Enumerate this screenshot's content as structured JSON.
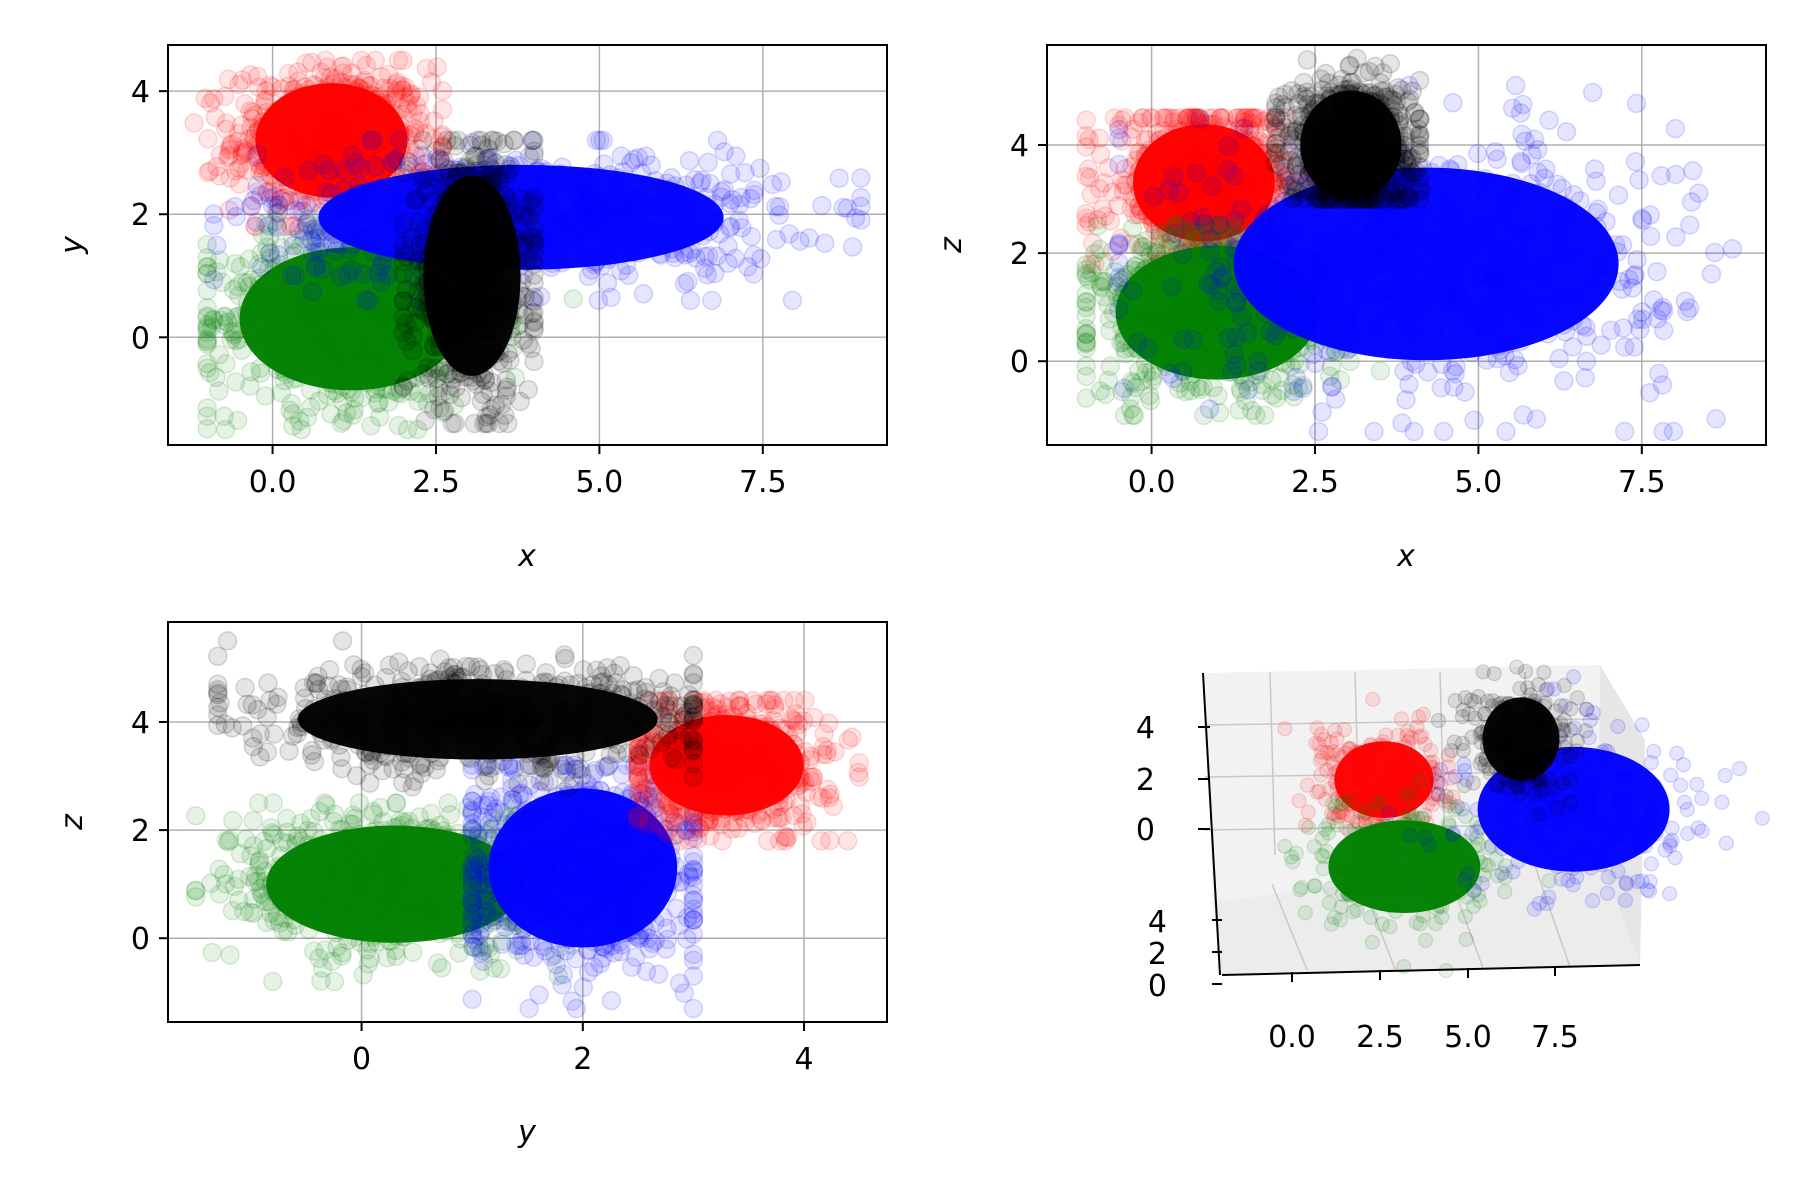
{
  "colors": {
    "red": "#ff0000",
    "green": "#008000",
    "blue": "#0000ff",
    "black": "#000000",
    "grid": "#b0b0b0"
  },
  "chart_data": [
    {
      "type": "scatter",
      "xlabel": "x",
      "ylabel": "y",
      "xlim": [
        -1.6,
        9.4
      ],
      "ylim": [
        -1.75,
        4.75
      ],
      "xticks": [
        "0.0",
        "2.5",
        "5.0",
        "7.5"
      ],
      "xtick_values": [
        0,
        2.5,
        5,
        7.5
      ],
      "yticks": [
        "0",
        "2",
        "4"
      ],
      "ytick_values": [
        0,
        2,
        4
      ],
      "grid": true,
      "clusters": [
        {
          "color": "red",
          "center": [
            0.9,
            3.2
          ],
          "spread": [
            0.75,
            0.6
          ],
          "extent": [
            [
              -1.2,
              2.6
            ],
            [
              1.8,
              4.5
            ]
          ]
        },
        {
          "color": "green",
          "center": [
            1.2,
            0.3
          ],
          "spread": [
            1.1,
            0.75
          ],
          "extent": [
            [
              -1.0,
              4.6
            ],
            [
              -1.5,
              3.4
            ]
          ]
        },
        {
          "color": "blue",
          "center": [
            3.8,
            1.95
          ],
          "spread": [
            2.0,
            0.55
          ],
          "extent": [
            [
              -0.9,
              9.0
            ],
            [
              0.6,
              3.2
            ]
          ]
        },
        {
          "color": "black",
          "center": [
            3.05,
            1.0
          ],
          "spread": [
            0.48,
            1.05
          ],
          "extent": [
            [
              2.0,
              4.0
            ],
            [
              -1.4,
              3.2
            ]
          ]
        }
      ]
    },
    {
      "type": "scatter",
      "xlabel": "x",
      "ylabel": "z",
      "xlim": [
        -1.6,
        9.4
      ],
      "ylim": [
        -1.55,
        5.85
      ],
      "xticks": [
        "0.0",
        "2.5",
        "5.0",
        "7.5"
      ],
      "xtick_values": [
        0,
        2.5,
        5,
        7.5
      ],
      "yticks": [
        "0",
        "2",
        "4"
      ],
      "ytick_values": [
        0,
        2,
        4
      ],
      "grid": true,
      "clusters": [
        {
          "color": "red",
          "center": [
            0.8,
            3.3
          ],
          "spread": [
            0.7,
            0.7
          ],
          "extent": [
            [
              -1.0,
              2.4
            ],
            [
              1.8,
              4.5
            ]
          ]
        },
        {
          "color": "green",
          "center": [
            1.0,
            0.9
          ],
          "spread": [
            1.0,
            0.8
          ],
          "extent": [
            [
              -1.0,
              3.5
            ],
            [
              -1.0,
              2.5
            ]
          ]
        },
        {
          "color": "blue",
          "center": [
            4.2,
            1.8
          ],
          "spread": [
            1.9,
            1.15
          ],
          "extent": [
            [
              -0.5,
              9.0
            ],
            [
              -1.3,
              5.1
            ]
          ]
        },
        {
          "color": "black",
          "center": [
            3.05,
            4.0
          ],
          "spread": [
            0.5,
            0.65
          ],
          "extent": [
            [
              1.9,
              4.1
            ],
            [
              3.0,
              5.6
            ]
          ]
        }
      ]
    },
    {
      "type": "scatter",
      "xlabel": "y",
      "ylabel": "z",
      "xlim": [
        -1.75,
        4.75
      ],
      "ylim": [
        -1.55,
        5.85
      ],
      "xticks": [
        "0",
        "2",
        "4"
      ],
      "xtick_values": [
        0,
        2,
        4
      ],
      "yticks": [
        "0",
        "2",
        "4"
      ],
      "ytick_values": [
        0,
        2,
        4
      ],
      "grid": true,
      "clusters": [
        {
          "color": "green",
          "center": [
            0.3,
            1.0
          ],
          "spread": [
            0.75,
            0.7
          ],
          "extent": [
            [
              -1.5,
              3.9
            ],
            [
              -0.8,
              2.5
            ]
          ]
        },
        {
          "color": "blue",
          "center": [
            2.0,
            1.3
          ],
          "spread": [
            0.55,
            0.95
          ],
          "extent": [
            [
              1.0,
              3.0
            ],
            [
              -1.3,
              3.2
            ]
          ]
        },
        {
          "color": "red",
          "center": [
            3.3,
            3.2
          ],
          "spread": [
            0.45,
            0.6
          ],
          "extent": [
            [
              2.5,
              4.5
            ],
            [
              1.8,
              4.4
            ]
          ]
        },
        {
          "color": "black",
          "center": [
            1.05,
            4.05
          ],
          "spread": [
            1.05,
            0.48
          ],
          "extent": [
            [
              -1.3,
              3.0
            ],
            [
              2.8,
              5.5
            ]
          ]
        }
      ]
    },
    {
      "type": "scatter",
      "subtype": "3d",
      "xticks": [
        "0.0",
        "2.5",
        "5.0",
        "7.5"
      ],
      "yticks": [
        "4",
        "2",
        "0"
      ],
      "zticks": [
        "4",
        "2",
        "0"
      ],
      "grid": true,
      "clusters": [
        {
          "color": "red",
          "center": [
            0.9,
            0.0,
            3.3
          ]
        },
        {
          "color": "green",
          "center": [
            1.2,
            0.3,
            0.9
          ]
        },
        {
          "color": "blue",
          "center": [
            3.8,
            1.95,
            1.8
          ]
        },
        {
          "color": "black",
          "center": [
            3.05,
            1.0,
            4.0
          ]
        }
      ]
    }
  ]
}
